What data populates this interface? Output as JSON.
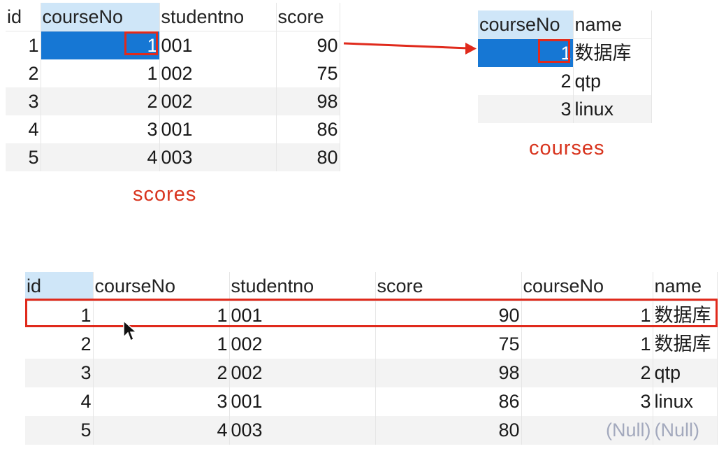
{
  "scores": {
    "caption": "scores",
    "columns": [
      "id",
      "courseNo",
      "studentno",
      "score"
    ],
    "rows": [
      [
        "1",
        "1",
        "001",
        "90"
      ],
      [
        "2",
        "1",
        "002",
        "75"
      ],
      [
        "3",
        "2",
        "002",
        "98"
      ],
      [
        "4",
        "3",
        "001",
        "86"
      ],
      [
        "5",
        "4",
        "003",
        "80"
      ]
    ]
  },
  "courses": {
    "caption": "courses",
    "columns": [
      "courseNo",
      "name"
    ],
    "rows": [
      [
        "1",
        "数据库"
      ],
      [
        "2",
        "qtp"
      ],
      [
        "3",
        "linux"
      ]
    ]
  },
  "joined": {
    "columns": [
      "id",
      "courseNo",
      "studentno",
      "score",
      "courseNo",
      "name"
    ],
    "rows": [
      [
        "1",
        "1",
        "001",
        "90",
        "1",
        "数据库"
      ],
      [
        "2",
        "1",
        "002",
        "75",
        "1",
        "数据库"
      ],
      [
        "3",
        "2",
        "002",
        "98",
        "2",
        "qtp"
      ],
      [
        "4",
        "3",
        "001",
        "86",
        "3",
        "linux"
      ],
      [
        "5",
        "4",
        "003",
        "80",
        "(Null)",
        "(Null)"
      ]
    ]
  },
  "colors": {
    "selection": "#1677d4",
    "header_active": "#cfe6f8",
    "highlight_red": "#e02a1c",
    "caption_red": "#d8341e",
    "null_text": "#a3a9bd"
  },
  "icons": [
    "arrow-right-icon",
    "mouse-pointer-icon"
  ]
}
